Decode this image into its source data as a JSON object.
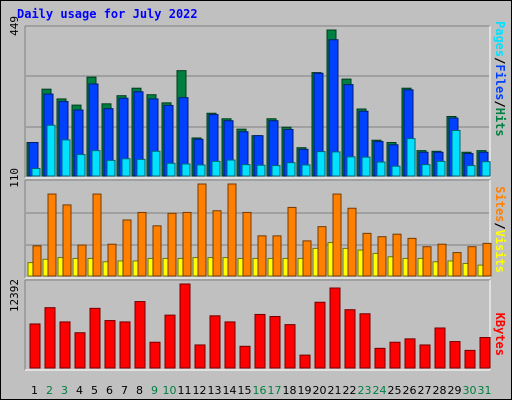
{
  "chart_data": {
    "type": "bar",
    "title": "Daily usage for July 2022",
    "categories": [
      "1",
      "2",
      "3",
      "4",
      "5",
      "6",
      "7",
      "8",
      "9",
      "10",
      "11",
      "12",
      "13",
      "14",
      "15",
      "16",
      "17",
      "18",
      "19",
      "20",
      "21",
      "22",
      "23",
      "24",
      "25",
      "26",
      "27",
      "28",
      "29",
      "30",
      "31"
    ],
    "weekend_days": [
      "2",
      "3",
      "9",
      "10",
      "16",
      "17",
      "23",
      "24",
      "30",
      "31"
    ],
    "panels": [
      {
        "id": "hits-files-pages",
        "max_label": "449",
        "ymax": 449,
        "series": [
          {
            "name": "Hits",
            "color": "#008040",
            "values": [
              103,
              267,
              237,
              218,
              304,
              222,
              247,
              270,
              250,
              225,
              324,
              117,
              193,
              176,
              144,
              124,
              176,
              150,
              87,
              318,
              449,
              298,
              206,
              110,
              103,
              270,
              78,
              76,
              183,
              73,
              78
            ]
          },
          {
            "name": "Files",
            "color": "#0040ff",
            "values": [
              103,
              252,
              229,
              203,
              283,
              207,
              239,
              259,
              237,
              217,
              241,
              113,
              189,
              170,
              136,
              124,
              170,
              143,
              82,
              316,
              419,
              281,
              199,
              106,
              96,
              265,
              73,
              73,
              178,
              69,
              73
            ]
          },
          {
            "name": "Pages",
            "color": "#00e0ff",
            "values": [
              23,
              156,
              111,
              66,
              78,
              48,
              53,
              51,
              76,
              39,
              37,
              34,
              45,
              49,
              35,
              33,
              32,
              41,
              34,
              75,
              74,
              59,
              58,
              43,
              30,
              115,
              35,
              45,
              140,
              32,
              44
            ]
          }
        ]
      },
      {
        "id": "visits-sites",
        "max_label": "110",
        "ymax": 110,
        "series": [
          {
            "name": "Visits",
            "color": "#ffff00",
            "values": [
              16,
              20,
              22,
              21,
              21,
              17,
              18,
              18,
              21,
              21,
              21,
              22,
              22,
              22,
              21,
              21,
              21,
              21,
              21,
              33,
              40,
              33,
              31,
              27,
              23,
              21,
              21,
              17,
              18,
              15,
              13
            ]
          },
          {
            "name": "Sites",
            "color": "#ff8000",
            "values": [
              36,
              98,
              85,
              37,
              98,
              38,
              67,
              76,
              60,
              75,
              76,
              110,
              78,
              110,
              76,
              48,
              48,
              82,
              42,
              59,
              98,
              81,
              51,
              47,
              50,
              45,
              35,
              38,
              28,
              35,
              39
            ]
          }
        ]
      },
      {
        "id": "kbytes",
        "max_label": "12392",
        "ymax": 12392,
        "series": [
          {
            "name": "KBytes",
            "color": "#ff0000",
            "values": [
              6500,
              8900,
              6800,
              5200,
              8800,
              7000,
              6800,
              9800,
              3800,
              7800,
              12392,
              3400,
              7700,
              6800,
              3200,
              7900,
              7600,
              6400,
              1900,
              9700,
              11800,
              8600,
              8000,
              2900,
              3800,
              4300,
              3400,
              5900,
              3900,
              2600,
              4500
            ]
          }
        ]
      }
    ]
  },
  "right_labels": {
    "pages": "Pages",
    "files": "Files",
    "hits": "Hits",
    "sites": "Sites",
    "visits": "Visits",
    "kbytes": "KBytes",
    "sep": "/"
  },
  "colors": {
    "background": "#c0c0c0",
    "gridline": "#808080",
    "weekday_label": "#000000",
    "weekend_label": "#008040",
    "title": "#0000ff"
  }
}
